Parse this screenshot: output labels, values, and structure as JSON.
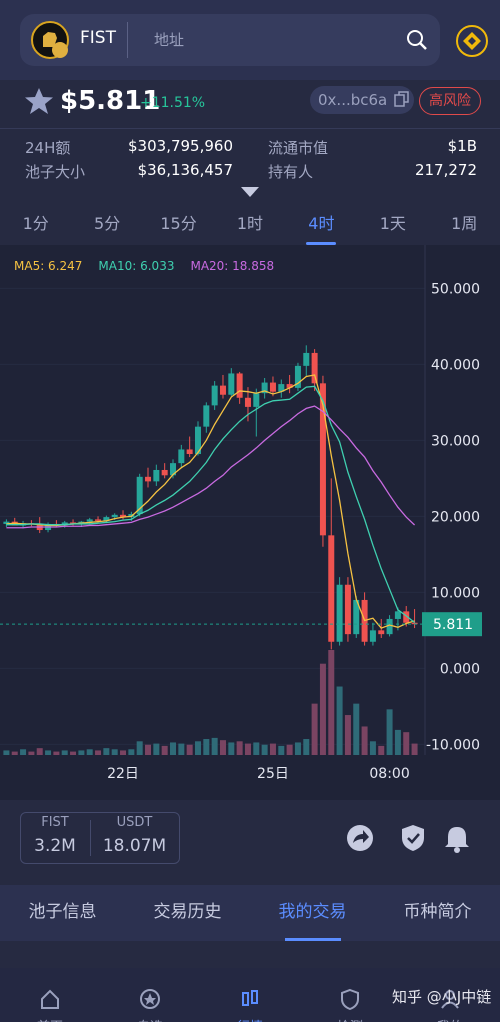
{
  "header": {
    "token": "FIST",
    "search_placeholder": "地址"
  },
  "price": {
    "value": "$5.811",
    "change": "+11.51%",
    "address": "0x...bc6a",
    "risk": "高风险"
  },
  "stats": [
    [
      "24H额",
      "$303,795,960",
      "流通市值",
      "$1B"
    ],
    [
      "池子大小",
      "$36,136,457",
      "持有人",
      "217,272"
    ]
  ],
  "timeframes": [
    "1分",
    "5分",
    "15分",
    "1时",
    "4时",
    "1天",
    "1周"
  ],
  "active_timeframe": 4,
  "chart_data": {
    "type": "candlestick",
    "categories": [
      null,
      null,
      null,
      null,
      null,
      null,
      null,
      null,
      null,
      null,
      null,
      null,
      null,
      null,
      "22日",
      null,
      null,
      null,
      null,
      null,
      null,
      null,
      null,
      null,
      null,
      null,
      null,
      null,
      null,
      null,
      null,
      null,
      "25日",
      null,
      null,
      null,
      null,
      null,
      null,
      null,
      null,
      null,
      null,
      null,
      null,
      null,
      "08:00",
      null,
      null,
      null
    ],
    "open": [
      19.0,
      19.3,
      18.8,
      19.1,
      19.0,
      18.2,
      19.0,
      18.9,
      19.2,
      19.0,
      19.3,
      19.6,
      19.4,
      19.9,
      20.2,
      19.9,
      20.3,
      25.2,
      24.6,
      26.1,
      25.4,
      27.0,
      28.8,
      28.2,
      31.8,
      34.6,
      37.2,
      36.0,
      38.8,
      35.6,
      34.4,
      36.2,
      37.6,
      36.4,
      37.4,
      36.9,
      39.8,
      41.5,
      37.5,
      17.5,
      3.5,
      11.0,
      4.5,
      9.0,
      3.5,
      5.0,
      4.5,
      6.5,
      7.5,
      6.0
    ],
    "high": [
      19.6,
      19.8,
      19.4,
      19.5,
      19.9,
      19.2,
      19.5,
      19.4,
      19.6,
      19.4,
      19.8,
      20.0,
      20.1,
      20.4,
      20.8,
      20.6,
      25.6,
      26.4,
      26.8,
      27.0,
      27.5,
      29.4,
      30.5,
      32.5,
      35.0,
      37.8,
      38.6,
      39.5,
      39.0,
      37.0,
      36.8,
      38.2,
      38.4,
      38.0,
      38.6,
      40.2,
      42.5,
      42.0,
      38.5,
      25.0,
      12.0,
      12.0,
      9.5,
      10.0,
      6.0,
      6.5,
      7.0,
      8.0,
      8.2,
      7.8
    ],
    "low": [
      18.6,
      18.9,
      18.4,
      18.7,
      17.8,
      17.9,
      18.6,
      18.5,
      18.8,
      18.6,
      19.0,
      19.2,
      19.1,
      19.5,
      19.6,
      19.4,
      20.0,
      23.8,
      24.0,
      25.0,
      25.0,
      26.5,
      27.8,
      28.0,
      31.0,
      34.0,
      35.5,
      35.8,
      34.8,
      32.5,
      30.5,
      35.5,
      35.8,
      35.6,
      36.2,
      36.5,
      38.5,
      36.5,
      16.0,
      2.5,
      3.0,
      3.5,
      4.0,
      3.0,
      3.0,
      4.0,
      4.2,
      5.0,
      5.5,
      5.3
    ],
    "close": [
      19.3,
      18.8,
      19.1,
      19.0,
      18.2,
      19.0,
      18.9,
      19.2,
      19.0,
      19.3,
      19.6,
      19.4,
      19.9,
      20.2,
      19.9,
      20.3,
      25.2,
      24.6,
      26.1,
      25.4,
      27.0,
      28.8,
      28.2,
      31.8,
      34.6,
      37.2,
      36.0,
      38.8,
      35.6,
      34.4,
      36.2,
      37.6,
      36.4,
      37.4,
      36.9,
      39.8,
      41.5,
      37.5,
      17.5,
      3.5,
      11.0,
      4.5,
      9.0,
      3.5,
      5.0,
      4.5,
      6.5,
      7.5,
      6.0,
      5.811
    ],
    "volume": [
      4,
      3,
      5,
      3,
      6,
      4,
      3,
      4,
      3,
      4,
      5,
      4,
      6,
      5,
      4,
      5,
      12,
      9,
      10,
      8,
      11,
      10,
      9,
      12,
      14,
      15,
      13,
      11,
      12,
      10,
      11,
      9,
      10,
      8,
      9,
      11,
      14,
      45,
      80,
      92,
      60,
      35,
      45,
      25,
      12,
      8,
      40,
      22,
      20,
      10
    ],
    "up_color": "#26a69a",
    "down_color": "#ef5350",
    "volume_up_color": "#2f6b78",
    "volume_down_color": "#7a4462",
    "ma": [
      {
        "name": "MA5: 6.247",
        "color": "#f5c242",
        "values": [
          19.0,
          19.1,
          19.0,
          19.0,
          18.9,
          18.8,
          18.8,
          18.9,
          19.0,
          19.1,
          19.2,
          19.3,
          19.4,
          19.7,
          19.9,
          20.0,
          21.0,
          22.0,
          23.2,
          24.2,
          25.5,
          26.4,
          27.1,
          28.4,
          30.0,
          32.1,
          33.9,
          35.7,
          36.5,
          36.4,
          36.2,
          36.5,
          36.1,
          36.4,
          36.9,
          37.5,
          38.4,
          38.6,
          34.6,
          28.0,
          22.1,
          15.1,
          9.1,
          6.3,
          6.6,
          5.3,
          5.7,
          5.4,
          5.9,
          6.247
        ]
      },
      {
        "name": "MA10: 6.033",
        "color": "#3fd0b0",
        "values": [
          18.9,
          18.9,
          18.9,
          19.0,
          19.0,
          18.9,
          18.9,
          18.9,
          19.0,
          19.0,
          19.0,
          19.1,
          19.2,
          19.3,
          19.5,
          19.6,
          20.3,
          20.8,
          21.5,
          22.1,
          22.8,
          23.7,
          24.6,
          25.8,
          27.1,
          28.8,
          30.2,
          31.4,
          32.5,
          33.4,
          34.1,
          34.8,
          35.2,
          35.3,
          35.4,
          36.2,
          37.0,
          37.1,
          35.2,
          32.0,
          29.8,
          25.8,
          22.6,
          19.6,
          16.2,
          13.1,
          10.4,
          7.7,
          6.9,
          6.033
        ]
      },
      {
        "name": "MA20: 18.858",
        "color": "#c86ae0",
        "values": [
          18.5,
          18.5,
          18.5,
          18.6,
          18.6,
          18.6,
          18.6,
          18.7,
          18.7,
          18.7,
          18.8,
          18.8,
          18.9,
          19.0,
          19.1,
          19.2,
          19.6,
          19.9,
          20.3,
          20.7,
          21.2,
          21.8,
          22.4,
          23.0,
          23.7,
          24.6,
          25.4,
          26.5,
          27.3,
          28.1,
          29.0,
          30.0,
          30.9,
          31.8,
          32.6,
          33.5,
          34.2,
          34.5,
          33.8,
          32.7,
          31.5,
          30.4,
          29.0,
          27.8,
          26.0,
          24.5,
          22.8,
          21.2,
          19.9,
          18.858
        ]
      }
    ],
    "ylim": [
      -11.4,
      55.7
    ],
    "yticks": [
      {
        "value": 50,
        "label": "50.000"
      },
      {
        "value": 40,
        "label": "40.000"
      },
      {
        "value": 30,
        "label": "30.000"
      },
      {
        "value": 20,
        "label": "20.000"
      },
      {
        "value": 10,
        "label": "10.000"
      },
      {
        "value": 0,
        "label": "0.000"
      },
      {
        "value": -10,
        "label": "-10.000"
      }
    ],
    "grid": true,
    "last_price": 5.811,
    "last_price_color": "#1f9e8a"
  },
  "liquidity": [
    {
      "label": "FIST",
      "value": "3.2M"
    },
    {
      "label": "USDT",
      "value": "18.07M"
    }
  ],
  "tabs": [
    "池子信息",
    "交易历史",
    "我的交易",
    "币种简介"
  ],
  "active_tab": 2,
  "nav": [
    "首页",
    "自选",
    "行情",
    "检测",
    "我的"
  ],
  "active_nav": 2,
  "watermark": "知乎 @小J中链"
}
